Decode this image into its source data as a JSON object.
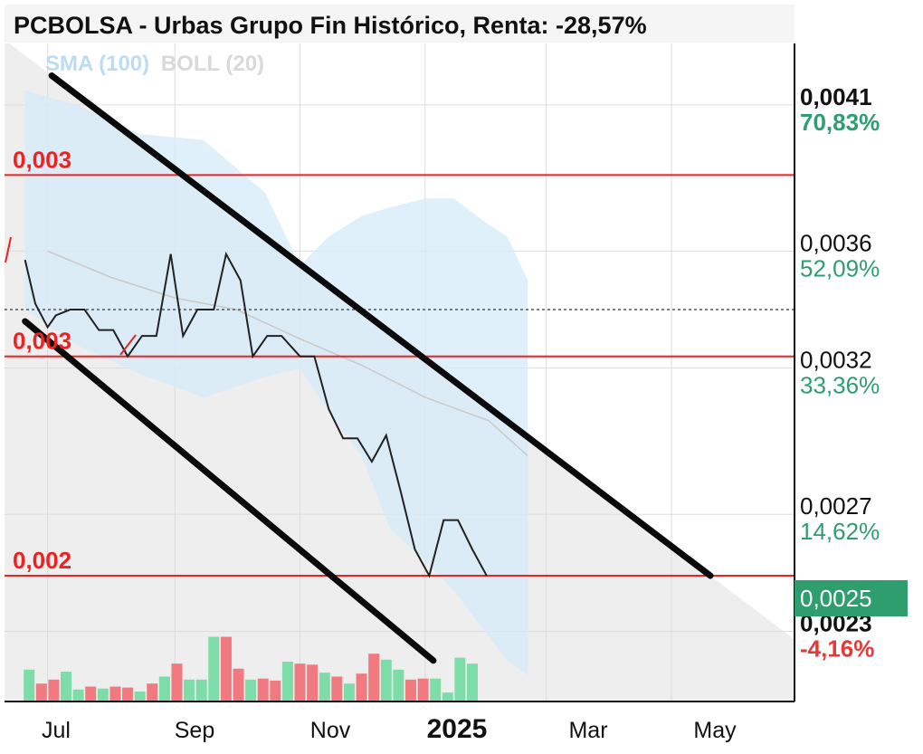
{
  "header": {
    "title": "PCBOLSA - Urbas Grupo Fin Histórico, Renta: -28,57%"
  },
  "legend": {
    "sma": "SMA (100)",
    "boll": "BOLL (20)"
  },
  "colors": {
    "price_line": "#222222",
    "support_line": "#ee2222",
    "channel": "#0a0a0a",
    "bollinger_fill": "#d6ebfa",
    "volume_up": "#7ddca8",
    "volume_down": "#f07a80",
    "positive": "#2e9e6f",
    "negative": "#e53935"
  },
  "chart_data": {
    "type": "line",
    "title": "PCBOLSA - Urbas Grupo Fin Histórico, Renta: -28,57%",
    "x_ticks": [
      "Jul",
      "Sep",
      "Nov",
      "2025",
      "Mar",
      "May"
    ],
    "y_ticks": [
      {
        "value": "0,0041",
        "pct": "70,83%",
        "pct_sign": "pos",
        "bold": true
      },
      {
        "value": "0,0036",
        "pct": "52,09%",
        "pct_sign": "pos",
        "bold": false
      },
      {
        "value": "0,0032",
        "pct": "33,36%",
        "pct_sign": "pos",
        "bold": false
      },
      {
        "value": "0,0027",
        "pct": "14,62%",
        "pct_sign": "pos",
        "bold": false
      },
      {
        "value": "0,0023",
        "pct": "-4,16%",
        "pct_sign": "neg",
        "bold": true
      }
    ],
    "current_price_label": "0,0025",
    "reference_price": 0.0034,
    "support_levels": [
      {
        "label": "0,003",
        "value": 0.00386
      },
      {
        "label": "0,003",
        "value": 0.00324
      },
      {
        "label": "0,002",
        "value": 0.00249
      }
    ],
    "series": [
      {
        "name": "Precio",
        "points": [
          [
            "2024-06-20",
            0.00357
          ],
          [
            "2024-06-25",
            0.00342
          ],
          [
            "2024-07-01",
            0.00334
          ],
          [
            "2024-07-05",
            0.00338
          ],
          [
            "2024-07-12",
            0.0034
          ],
          [
            "2024-07-19",
            0.0034
          ],
          [
            "2024-07-26",
            0.00333
          ],
          [
            "2024-08-02",
            0.00333
          ],
          [
            "2024-08-09",
            0.00324
          ],
          [
            "2024-08-16",
            0.00331
          ],
          [
            "2024-08-23",
            0.00331
          ],
          [
            "2024-08-30",
            0.00359
          ],
          [
            "2024-09-05",
            0.00331
          ],
          [
            "2024-09-12",
            0.0034
          ],
          [
            "2024-09-20",
            0.0034
          ],
          [
            "2024-09-26",
            0.00359
          ],
          [
            "2024-10-03",
            0.0035
          ],
          [
            "2024-10-09",
            0.00324
          ],
          [
            "2024-10-16",
            0.00331
          ],
          [
            "2024-10-23",
            0.00331
          ],
          [
            "2024-11-01",
            0.00324
          ],
          [
            "2024-11-08",
            0.00324
          ],
          [
            "2024-11-15",
            0.00306
          ],
          [
            "2024-11-22",
            0.00296
          ],
          [
            "2024-11-29",
            0.00296
          ],
          [
            "2024-12-06",
            0.00288
          ],
          [
            "2024-12-13",
            0.00297
          ],
          [
            "2024-12-20",
            0.00278
          ],
          [
            "2024-12-27",
            0.00258
          ],
          [
            "2025-01-03",
            0.00249
          ],
          [
            "2025-01-10",
            0.00268
          ],
          [
            "2025-01-17",
            0.00268
          ],
          [
            "2025-01-24",
            0.00258
          ],
          [
            "2025-01-31",
            0.00249
          ]
        ]
      },
      {
        "name": "SMA (100)",
        "points": [
          [
            "2024-07-01",
            0.0036
          ],
          [
            "2024-08-01",
            0.00351
          ],
          [
            "2024-09-01",
            0.00344
          ],
          [
            "2024-10-01",
            0.0034
          ],
          [
            "2024-11-01",
            0.0033
          ],
          [
            "2024-12-01",
            0.00321
          ],
          [
            "2025-01-01",
            0.0031
          ],
          [
            "2025-02-01",
            0.00302
          ],
          [
            "2025-02-20",
            0.0029
          ]
        ]
      }
    ],
    "bollinger_upper": [
      [
        "2024-06-20",
        0.00415
      ],
      [
        "2024-07-15",
        0.0041
      ],
      [
        "2024-08-15",
        0.004
      ],
      [
        "2024-09-15",
        0.00398
      ],
      [
        "2024-10-15",
        0.0038
      ],
      [
        "2024-11-01",
        0.00355
      ],
      [
        "2024-11-15",
        0.00365
      ],
      [
        "2024-12-01",
        0.00372
      ],
      [
        "2024-12-15",
        0.00375
      ],
      [
        "2025-01-01",
        0.00378
      ],
      [
        "2025-01-15",
        0.00378
      ],
      [
        "2025-01-30",
        0.0037
      ],
      [
        "2025-02-10",
        0.00365
      ],
      [
        "2025-02-20",
        0.0035
      ]
    ],
    "bollinger_lower": [
      [
        "2024-06-20",
        0.0034
      ],
      [
        "2024-07-15",
        0.00328
      ],
      [
        "2024-08-15",
        0.00318
      ],
      [
        "2024-09-15",
        0.0031
      ],
      [
        "2024-10-15",
        0.00317
      ],
      [
        "2024-11-01",
        0.0032
      ],
      [
        "2024-11-15",
        0.00305
      ],
      [
        "2024-12-01",
        0.0029
      ],
      [
        "2024-12-15",
        0.00265
      ],
      [
        "2025-01-01",
        0.00254
      ],
      [
        "2025-01-15",
        0.00244
      ],
      [
        "2025-01-30",
        0.0023
      ],
      [
        "2025-02-10",
        0.0022
      ],
      [
        "2025-02-20",
        0.00215
      ]
    ],
    "channel_lines": [
      {
        "name": "upper",
        "from": [
          "2024-07-03",
          0.0042
        ],
        "to": [
          "2025-05-20",
          0.00249
        ]
      },
      {
        "name": "lower",
        "from": [
          "2024-06-20",
          0.00336
        ],
        "to": [
          "2025-01-05",
          0.0022
        ]
      }
    ],
    "volume": [
      {
        "date": "2024-06-22",
        "v": 0.32,
        "up": true
      },
      {
        "date": "2024-06-28",
        "v": 0.18,
        "up": false
      },
      {
        "date": "2024-07-04",
        "v": 0.22,
        "up": false
      },
      {
        "date": "2024-07-10",
        "v": 0.3,
        "up": true
      },
      {
        "date": "2024-07-16",
        "v": 0.12,
        "up": true
      },
      {
        "date": "2024-07-22",
        "v": 0.15,
        "up": false
      },
      {
        "date": "2024-07-28",
        "v": 0.13,
        "up": true
      },
      {
        "date": "2024-08-03",
        "v": 0.15,
        "up": false
      },
      {
        "date": "2024-08-09",
        "v": 0.14,
        "up": false
      },
      {
        "date": "2024-08-15",
        "v": 0.1,
        "up": true
      },
      {
        "date": "2024-08-21",
        "v": 0.18,
        "up": false
      },
      {
        "date": "2024-08-27",
        "v": 0.25,
        "up": true
      },
      {
        "date": "2024-09-02",
        "v": 0.38,
        "up": false
      },
      {
        "date": "2024-09-08",
        "v": 0.22,
        "up": true
      },
      {
        "date": "2024-09-14",
        "v": 0.22,
        "up": true
      },
      {
        "date": "2024-09-20",
        "v": 0.65,
        "up": true
      },
      {
        "date": "2024-09-26",
        "v": 0.65,
        "up": false
      },
      {
        "date": "2024-10-02",
        "v": 0.33,
        "up": false
      },
      {
        "date": "2024-10-08",
        "v": 0.22,
        "up": true
      },
      {
        "date": "2024-10-14",
        "v": 0.23,
        "up": false
      },
      {
        "date": "2024-10-20",
        "v": 0.21,
        "up": false
      },
      {
        "date": "2024-10-26",
        "v": 0.4,
        "up": true
      },
      {
        "date": "2024-11-01",
        "v": 0.38,
        "up": false
      },
      {
        "date": "2024-11-07",
        "v": 0.37,
        "up": false
      },
      {
        "date": "2024-11-13",
        "v": 0.29,
        "up": true
      },
      {
        "date": "2024-11-19",
        "v": 0.25,
        "up": false
      },
      {
        "date": "2024-11-25",
        "v": 0.18,
        "up": true
      },
      {
        "date": "2024-12-01",
        "v": 0.28,
        "up": false
      },
      {
        "date": "2024-12-07",
        "v": 0.48,
        "up": false
      },
      {
        "date": "2024-12-13",
        "v": 0.42,
        "up": true
      },
      {
        "date": "2024-12-19",
        "v": 0.32,
        "up": true
      },
      {
        "date": "2024-12-25",
        "v": 0.22,
        "up": false
      },
      {
        "date": "2024-12-31",
        "v": 0.23,
        "up": false
      },
      {
        "date": "2025-01-06",
        "v": 0.23,
        "up": true
      },
      {
        "date": "2025-01-12",
        "v": 0.09,
        "up": true
      },
      {
        "date": "2025-01-18",
        "v": 0.44,
        "up": true
      },
      {
        "date": "2025-01-24",
        "v": 0.38,
        "up": true
      }
    ]
  }
}
